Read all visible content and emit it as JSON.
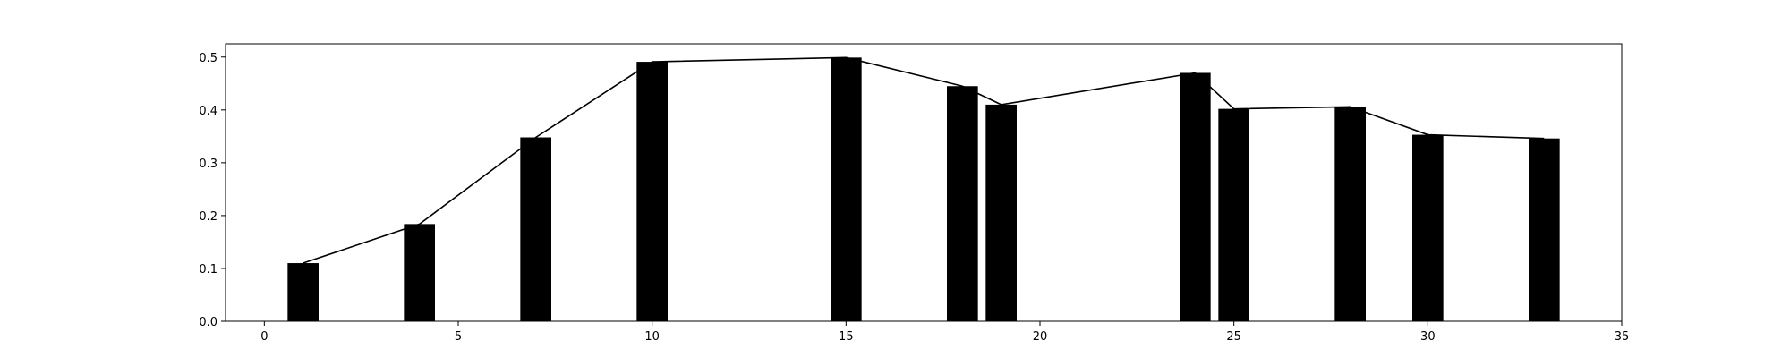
{
  "chart_data": {
    "type": "bar",
    "x": [
      1,
      4,
      7,
      10,
      15,
      18,
      19,
      24,
      25,
      28,
      30,
      33
    ],
    "values": [
      0.11,
      0.184,
      0.348,
      0.491,
      0.499,
      0.445,
      0.41,
      0.47,
      0.402,
      0.406,
      0.353,
      0.346
    ],
    "line": {
      "x": [
        1,
        4,
        7,
        10,
        15,
        18,
        19,
        24,
        25,
        28,
        30,
        33
      ],
      "y": [
        0.11,
        0.184,
        0.348,
        0.491,
        0.499,
        0.445,
        0.41,
        0.47,
        0.402,
        0.406,
        0.353,
        0.346
      ]
    },
    "bar_width": 0.8,
    "xlim": [
      -1,
      35
    ],
    "ylim": [
      0,
      0.525
    ],
    "xticks": [
      0,
      5,
      10,
      15,
      20,
      25,
      30,
      35
    ],
    "yticks": [
      0.0,
      0.1,
      0.2,
      0.3,
      0.4,
      0.5
    ],
    "xtick_labels": [
      "0",
      "5",
      "10",
      "15",
      "20",
      "25",
      "30",
      "35"
    ],
    "ytick_labels": [
      "0.0",
      "0.1",
      "0.2",
      "0.3",
      "0.4",
      "0.5"
    ],
    "title": "",
    "xlabel": "",
    "ylabel": "",
    "grid": false,
    "colors": {
      "bar": "#000000",
      "line": "#000000",
      "axes": "#000000",
      "background": "#ffffff"
    }
  }
}
